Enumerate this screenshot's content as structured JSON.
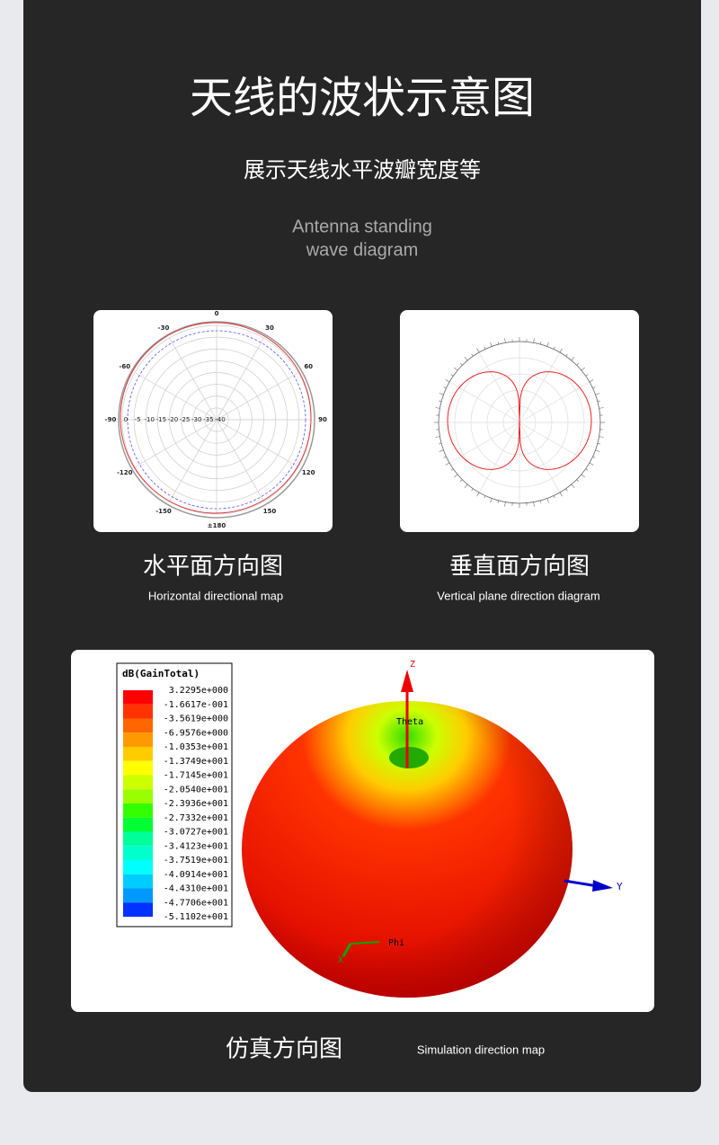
{
  "header": {
    "title": "天线的波状示意图",
    "subtitle": "展示天线水平波瓣宽度等",
    "english": [
      "Antenna standing",
      "wave diagram"
    ]
  },
  "cards": [
    {
      "title": "水平面方向图",
      "subtitle": "Horizontal directional map",
      "angle_labels": [
        "0",
        "30",
        "60",
        "90",
        "120",
        "150",
        "±180",
        "-150",
        "-120",
        "-90",
        "-60",
        "-30"
      ],
      "radial_labels": [
        "0",
        "-5",
        "-10",
        "-15",
        "-20",
        "-25",
        "-30",
        "-35",
        "-40"
      ]
    },
    {
      "title": "垂直面方向图",
      "subtitle": "Vertical plane direction diagram"
    }
  ],
  "simulation": {
    "title": "仿真方向图",
    "subtitle": "Simulation direction map",
    "legend_title": "dB(GainTotal)",
    "legend": [
      "3.2295e+000",
      "-1.6617e-001",
      "-3.5619e+000",
      "-6.9576e+000",
      "-1.0353e+001",
      "-1.3749e+001",
      "-1.7145e+001",
      "-2.0540e+001",
      "-2.3936e+001",
      "-2.7332e+001",
      "-3.0727e+001",
      "-3.4123e+001",
      "-3.7519e+001",
      "-4.0914e+001",
      "-4.4310e+001",
      "-4.7706e+001",
      "-5.1102e+001"
    ],
    "legend_colors": [
      "#ff0000",
      "#ff3300",
      "#ff6600",
      "#ff9900",
      "#ffcc00",
      "#ffff00",
      "#ccff00",
      "#99ff00",
      "#33ff00",
      "#00ff33",
      "#00ff99",
      "#00ffcc",
      "#00ffff",
      "#00ccff",
      "#0099ff",
      "#0033ff",
      "#0000ff"
    ],
    "axes": {
      "z": "Z",
      "theta": "Theta",
      "y": "Y",
      "phi": "Phi",
      "x": "X"
    }
  }
}
